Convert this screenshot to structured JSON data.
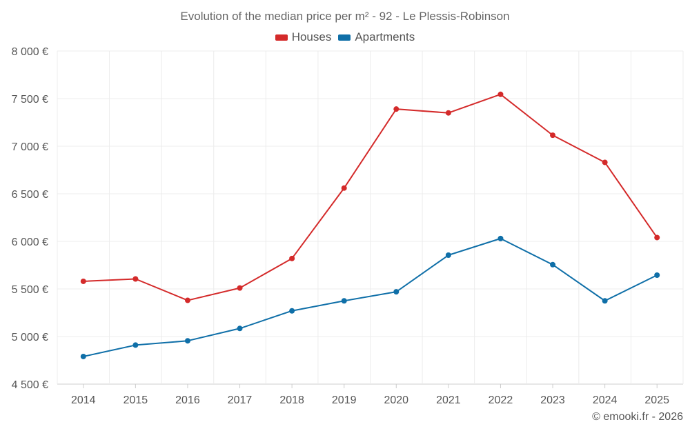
{
  "chart_data": {
    "type": "line",
    "title": "Evolution of the median price per m² - 92 - Le Plessis-Robinson",
    "categories": [
      "2014",
      "2015",
      "2016",
      "2017",
      "2018",
      "2019",
      "2020",
      "2021",
      "2022",
      "2023",
      "2024",
      "2025"
    ],
    "series": [
      {
        "name": "Houses",
        "color": "#d42a2a",
        "values": [
          5580,
          5605,
          5380,
          5510,
          5820,
          6560,
          7390,
          7350,
          7545,
          7115,
          6830,
          6040
        ]
      },
      {
        "name": "Apartments",
        "color": "#0f6fa8",
        "values": [
          4790,
          4910,
          4955,
          5085,
          5270,
          5375,
          5470,
          5855,
          6030,
          5755,
          5375,
          5645
        ]
      }
    ],
    "ylim": [
      4500,
      8000
    ],
    "yticks": [
      4500,
      5000,
      5500,
      6000,
      6500,
      7000,
      7500,
      8000
    ],
    "ytick_labels": [
      "4 500 €",
      "5 000 €",
      "5 500 €",
      "6 000 €",
      "6 500 €",
      "7 000 €",
      "7 500 €",
      "8 000 €"
    ],
    "xlabel": "",
    "ylabel": "",
    "grid": true,
    "legend_position": "top-center"
  },
  "credit": "© emooki.fr - 2026"
}
